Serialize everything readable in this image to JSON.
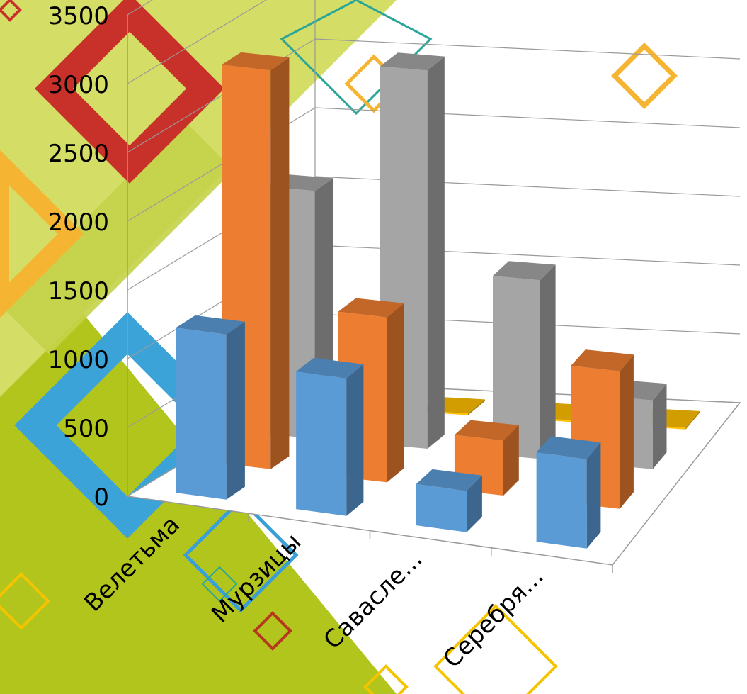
{
  "chart_data": {
    "type": "bar",
    "subtype": "3d-clustered-column",
    "categories": [
      "Велетьма",
      "Мурзицы",
      "Савасле...",
      "Серебря..."
    ],
    "series": [
      {
        "values": [
          1200,
          1000,
          300,
          650
        ],
        "color": "#5B9BD5"
      },
      {
        "values": [
          2900,
          1200,
          400,
          1000
        ],
        "color": "#ED7D31"
      },
      {
        "values": [
          1800,
          2750,
          1300,
          500
        ],
        "color": "#A5A5A5"
      },
      {
        "values": [
          0,
          0,
          0,
          0
        ],
        "color": "#FFC000"
      }
    ],
    "ylim": [
      0,
      3500
    ],
    "yticks": [
      0,
      500,
      1000,
      1500,
      2000,
      2500,
      3000,
      3500
    ],
    "grid": true,
    "legend": "none",
    "title": "",
    "xlabel": "",
    "ylabel": ""
  },
  "background": {
    "palette": [
      "#B5C91E",
      "#D8E05A",
      "#C8302A",
      "#3A9FD6",
      "#F5B533",
      "#2AA598",
      "#F5C400"
    ]
  }
}
